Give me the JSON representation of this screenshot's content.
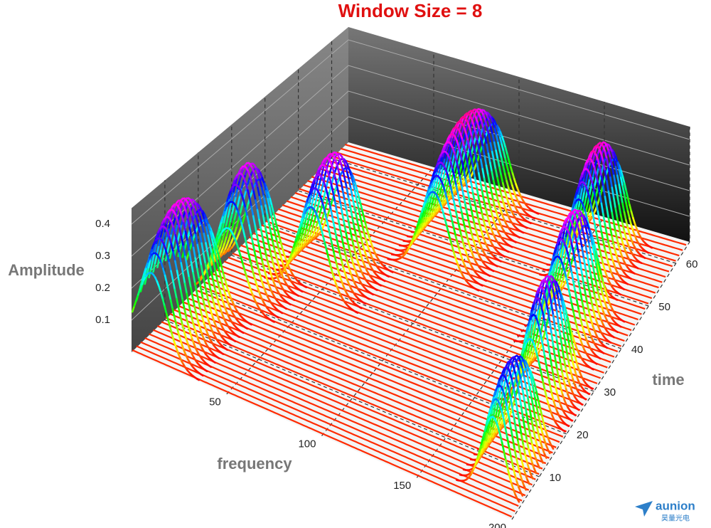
{
  "chart_data": {
    "type": "waterfall3d",
    "title": "Window Size = 8",
    "x_label": "frequency",
    "y_label": "time",
    "z_label": "Amplitude",
    "xlim": [
      0,
      200
    ],
    "xticks": [
      50,
      100,
      150,
      200
    ],
    "ylim": [
      0,
      65
    ],
    "yticks": [
      10,
      20,
      30,
      40,
      50,
      60
    ],
    "zlim": [
      0,
      0.45
    ],
    "zticks": [
      0.1,
      0.2,
      0.3,
      0.4
    ],
    "peaks": [
      {
        "frequency": 10,
        "width": 8,
        "amplitude": 0.42,
        "time_start": 0,
        "time_end": 17
      },
      {
        "frequency": 18,
        "width": 8,
        "amplitude": 0.41,
        "time_start": 19,
        "time_end": 30
      },
      {
        "frequency": 48,
        "width": 8,
        "amplitude": 0.42,
        "time_start": 27,
        "time_end": 40
      },
      {
        "frequency": 92,
        "width": 8,
        "amplitude": 0.45,
        "time_start": 41,
        "time_end": 62
      },
      {
        "frequency": 162,
        "width": 7,
        "amplitude": 0.44,
        "time_start": 48,
        "time_end": 62
      },
      {
        "frequency": 172,
        "width": 7,
        "amplitude": 0.42,
        "time_start": 34,
        "time_end": 46
      },
      {
        "frequency": 180,
        "width": 6,
        "amplitude": 0.4,
        "time_start": 20,
        "time_end": 31
      },
      {
        "frequency": 186,
        "width": 6,
        "amplitude": 0.35,
        "time_start": 2,
        "time_end": 16
      }
    ]
  },
  "watermark": {
    "brand": "aunion",
    "subtitle": "昊量光电"
  }
}
